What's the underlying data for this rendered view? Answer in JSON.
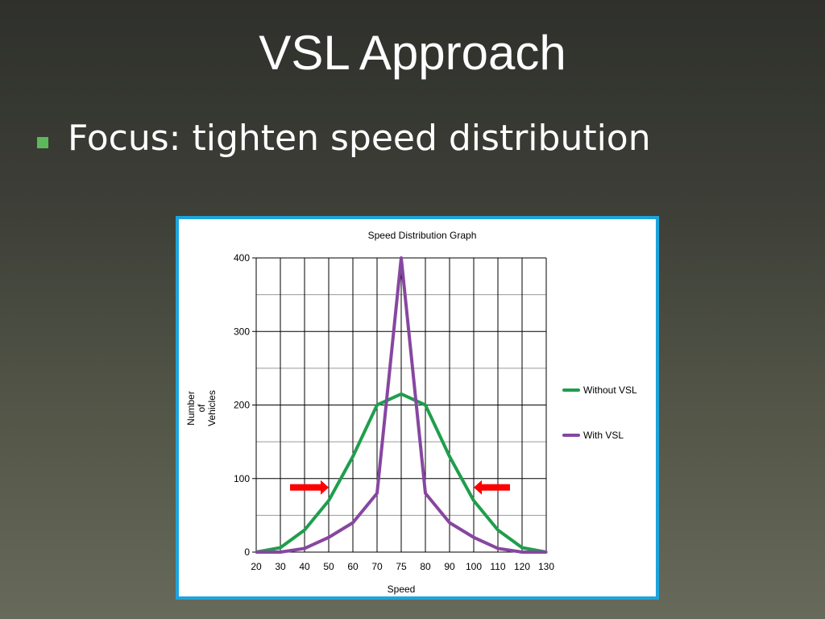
{
  "slide": {
    "title": "VSL Approach",
    "bullets": [
      "Focus:  tighten speed distribution"
    ],
    "bullet_color": "#5cb85c",
    "background": "dark olive-grey gradient"
  },
  "chart_data": {
    "type": "line",
    "title": "Speed Distribution Graph",
    "xlabel": "Speed",
    "ylabel": "Number of Vehicles",
    "categories": [
      "20",
      "30",
      "40",
      "50",
      "60",
      "70",
      "75",
      "80",
      "90",
      "100",
      "110",
      "120",
      "130"
    ],
    "series": [
      {
        "name": "Without VSL",
        "color": "#1f9e4c",
        "values": [
          0,
          6,
          30,
          70,
          130,
          200,
          215,
          200,
          130,
          70,
          30,
          6,
          0
        ]
      },
      {
        "name": "With VSL",
        "color": "#8647a0",
        "values": [
          0,
          0,
          5,
          20,
          40,
          80,
          400,
          80,
          40,
          20,
          5,
          0,
          0
        ]
      }
    ],
    "ylim": [
      0,
      400
    ],
    "yticks": [
      0,
      100,
      200,
      300,
      400
    ],
    "grid": true,
    "legend_position": "right",
    "annotations": [
      {
        "type": "arrow",
        "direction": "right",
        "color": "#ff0000",
        "x_from": 34,
        "x_to": 50,
        "y": 88
      },
      {
        "type": "arrow",
        "direction": "left",
        "color": "#ff0000",
        "x_from": 115,
        "x_to": 100,
        "y": 88
      }
    ]
  }
}
